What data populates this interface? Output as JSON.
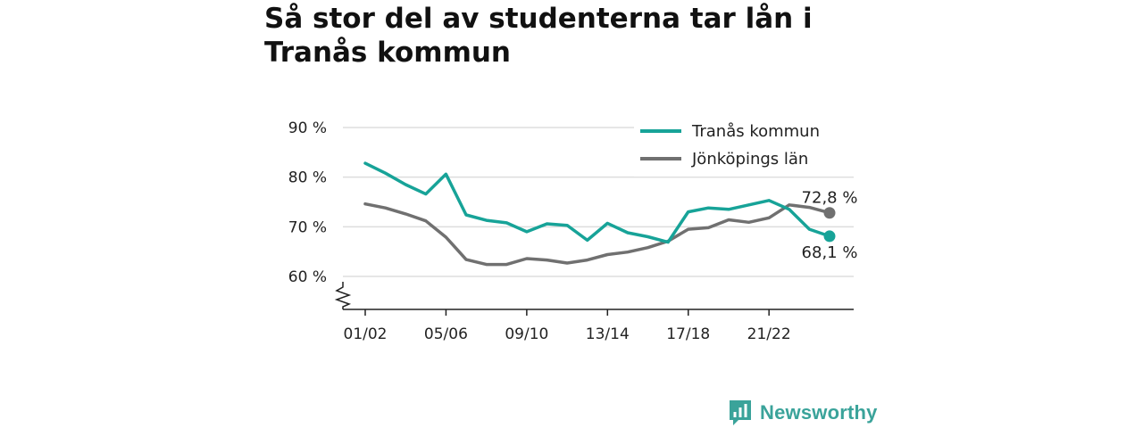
{
  "title": "Så stor del av studenterna tar lån i Tranås kommun",
  "brand": {
    "name": "Newsworthy",
    "icon": "newsworthy-logo-icon"
  },
  "colors": {
    "series_primary": "#17a398",
    "series_secondary": "#707070",
    "grid": "#dddddd",
    "axis": "#222222",
    "brand": "#3aa39a"
  },
  "chart_data": {
    "type": "line",
    "title": "Så stor del av studenterna tar lån i Tranås kommun",
    "xlabel": "",
    "ylabel": "",
    "x": [
      "01/02",
      "02/03",
      "03/04",
      "04/05",
      "05/06",
      "06/07",
      "07/08",
      "08/09",
      "09/10",
      "10/11",
      "11/12",
      "12/13",
      "13/14",
      "14/15",
      "15/16",
      "16/17",
      "17/18",
      "18/19",
      "19/20",
      "20/21",
      "21/22",
      "22/23",
      "23/24",
      "24/25"
    ],
    "x_tick_labels": [
      "01/02",
      "05/06",
      "09/10",
      "13/14",
      "17/18",
      "21/22"
    ],
    "y_ticks": [
      60,
      70,
      80,
      90
    ],
    "y_tick_labels": [
      "60 %",
      "70 %",
      "80 %",
      "90 %"
    ],
    "ylim": [
      53,
      90
    ],
    "y_axis_break": true,
    "grid": true,
    "legend_position": "top-right",
    "series": [
      {
        "name": "Tranås kommun",
        "color": "#17a398",
        "values": [
          82.8,
          80.8,
          78.5,
          76.6,
          80.6,
          72.4,
          71.3,
          70.8,
          69.0,
          70.6,
          70.3,
          67.3,
          70.7,
          68.8,
          68.0,
          66.9,
          73.0,
          73.8,
          73.5,
          74.4,
          75.3,
          73.5,
          69.5,
          68.1
        ],
        "end_label": "68,1 %"
      },
      {
        "name": "Jönköpings län",
        "color": "#707070",
        "values": [
          74.6,
          73.8,
          72.6,
          71.2,
          67.9,
          63.4,
          62.4,
          62.4,
          63.6,
          63.3,
          62.7,
          63.3,
          64.4,
          64.9,
          65.8,
          67.1,
          69.5,
          69.8,
          71.4,
          70.9,
          71.8,
          74.4,
          73.9,
          72.8
        ],
        "end_label": "72,8 %"
      }
    ]
  }
}
